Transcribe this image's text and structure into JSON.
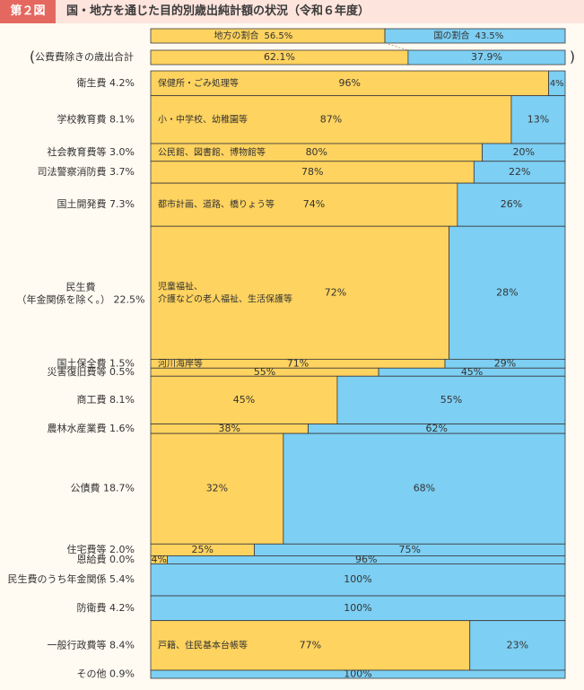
{
  "header": {
    "badge": "第２図",
    "title": "国・地方を通じた目的別歳出純計額の状況（令和６年度）"
  },
  "colors": {
    "local": "#ffd35f",
    "national": "#7dcff3",
    "border": "#3a3a3a"
  },
  "chart_data": {
    "type": "bar",
    "orientation": "horizontal-stacked-100%",
    "legend": {
      "local": "地方の割合",
      "national": "国の割合",
      "local_value": "56.5%",
      "national_value": "43.5%"
    },
    "series_order": [
      "地方",
      "国"
    ],
    "total_row": {
      "label": "公費費除きの歳出合計",
      "local_label": "62.1%",
      "national_label": "37.9%",
      "local": 62.1,
      "national": 37.9
    },
    "categories": [
      {
        "label": "衛生費",
        "share": "4.2%",
        "local": 96,
        "national": 4,
        "local_label": "96%",
        "national_label": "4%",
        "desc": "保健所・ごみ処理等"
      },
      {
        "label": "学校教育費",
        "share": "8.1%",
        "local": 87,
        "national": 13,
        "local_label": "87%",
        "national_label": "13%",
        "desc": "小・中学校、幼稚園等"
      },
      {
        "label": "社会教育費等",
        "share": "3.0%",
        "local": 80,
        "national": 20,
        "local_label": "80%",
        "national_label": "20%",
        "desc": "公民館、図書館、博物館等"
      },
      {
        "label": "司法警察消防費",
        "share": "3.7%",
        "local": 78,
        "national": 22,
        "local_label": "78%",
        "national_label": "22%",
        "desc": ""
      },
      {
        "label": "国土開発費",
        "share": "7.3%",
        "local": 74,
        "national": 26,
        "local_label": "74%",
        "national_label": "26%",
        "desc": "都市計画、道路、橋りょう等"
      },
      {
        "label": "民生費",
        "label2": "（年金関係を除く。）",
        "share": "22.5%",
        "local": 72,
        "national": 28,
        "local_label": "72%",
        "national_label": "28%",
        "desc": "児童福祉、",
        "desc2": "介護などの老人福祉、生活保護等"
      },
      {
        "label": "国土保全費",
        "share": "1.5%",
        "local": 71,
        "national": 29,
        "local_label": "71%",
        "national_label": "29%",
        "desc": "河川海岸等"
      },
      {
        "label": "災害復旧費等",
        "share": "0.5%",
        "local": 55,
        "national": 45,
        "local_label": "55%",
        "national_label": "45%",
        "desc": ""
      },
      {
        "label": "商工費",
        "share": "8.1%",
        "local": 45,
        "national": 55,
        "local_label": "45%",
        "national_label": "55%",
        "desc": ""
      },
      {
        "label": "農林水産業費",
        "share": "1.6%",
        "local": 38,
        "national": 62,
        "local_label": "38%",
        "national_label": "62%",
        "desc": ""
      },
      {
        "label": "公債費",
        "share": "18.7%",
        "local": 32,
        "national": 68,
        "local_label": "32%",
        "national_label": "68%",
        "desc": ""
      },
      {
        "label": "住宅費等",
        "share": "2.0%",
        "local": 25,
        "national": 75,
        "local_label": "25%",
        "national_label": "75%",
        "desc": ""
      },
      {
        "label": "恩給費",
        "share": "0.0%",
        "local": 4,
        "national": 96,
        "local_label": "4%",
        "national_label": "96%",
        "desc": ""
      },
      {
        "label": "民生費のうち年金関係",
        "share": "5.4%",
        "local": 0,
        "national": 100,
        "local_label": "",
        "national_label": "100%",
        "desc": ""
      },
      {
        "label": "防衛費",
        "share": "4.2%",
        "local": 0,
        "national": 100,
        "local_label": "",
        "national_label": "100%",
        "desc": ""
      },
      {
        "label": "一般行政費等",
        "share": "8.4%",
        "local": 77,
        "national": 23,
        "local_label": "77%",
        "national_label": "23%",
        "desc": "戸籍、住民基本台帳等"
      },
      {
        "label": "その他",
        "share": "0.9%",
        "local": 0,
        "national": 100,
        "local_label": "",
        "national_label": "100%",
        "desc": ""
      }
    ]
  }
}
